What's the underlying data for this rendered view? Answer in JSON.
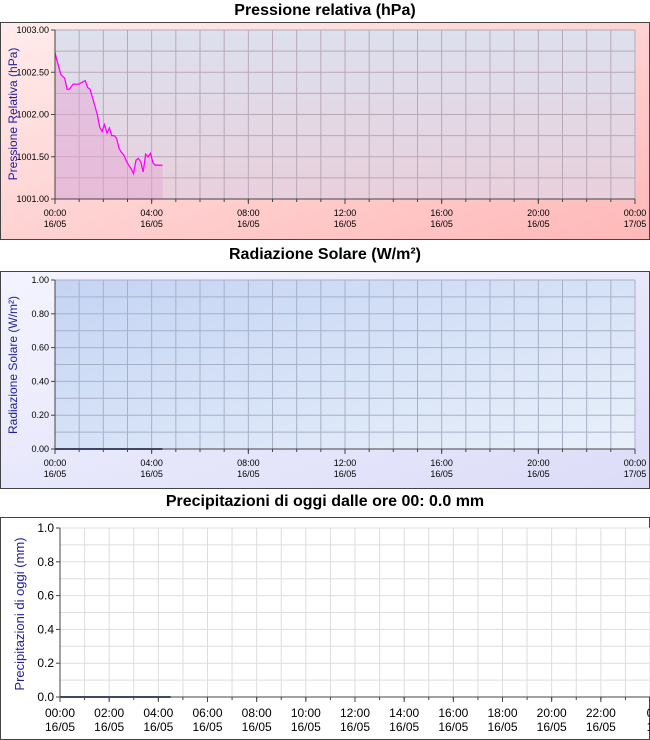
{
  "charts": [
    {
      "type": "area",
      "title": "Pressione relativa (hPa)",
      "ylabel": "Pressione Relativa (hPa)",
      "ylim": [
        1001.0,
        1003.0
      ],
      "yticks": [
        "1001.00",
        "1001.50",
        "1002.00",
        "1002.50",
        "1003.00"
      ],
      "xticks": [
        {
          "time": "00:00",
          "date": "16/05"
        },
        {
          "time": "04:00",
          "date": "16/05"
        },
        {
          "time": "08:00",
          "date": "16/05"
        },
        {
          "time": "12:00",
          "date": "16/05"
        },
        {
          "time": "16:00",
          "date": "16/05"
        },
        {
          "time": "20:00",
          "date": "16/05"
        },
        {
          "time": "00:00",
          "date": "17/05"
        }
      ],
      "xlim_hours": [
        0,
        24
      ],
      "line_color": "#ff00ff",
      "series": [
        {
          "x": [
            0.0,
            0.1,
            0.25,
            0.4,
            0.5,
            0.6,
            0.75,
            0.9,
            1.0,
            1.1,
            1.25,
            1.35,
            1.45,
            1.55,
            1.65,
            1.75,
            1.85,
            1.95,
            2.05,
            2.15,
            2.25,
            2.35,
            2.45,
            2.55,
            2.65,
            2.75,
            2.85,
            2.95,
            3.05,
            3.15,
            3.25,
            3.35,
            3.45,
            3.55,
            3.65,
            3.75,
            3.85,
            3.95,
            4.05,
            4.15,
            4.25,
            4.35,
            4.45
          ],
          "y": [
            1002.73,
            1002.62,
            1002.47,
            1002.43,
            1002.3,
            1002.3,
            1002.36,
            1002.36,
            1002.36,
            1002.38,
            1002.4,
            1002.32,
            1002.3,
            1002.2,
            1002.1,
            1002.0,
            1001.85,
            1001.8,
            1001.88,
            1001.78,
            1001.84,
            1001.75,
            1001.75,
            1001.72,
            1001.6,
            1001.55,
            1001.52,
            1001.45,
            1001.4,
            1001.36,
            1001.3,
            1001.46,
            1001.48,
            1001.44,
            1001.32,
            1001.53,
            1001.5,
            1001.54,
            1001.43,
            1001.4,
            1001.4,
            1001.4,
            1001.4
          ]
        }
      ]
    },
    {
      "type": "line",
      "title": "Radiazione Solare (W/m²)",
      "ylabel": "Radiazione Solare (W/m²)",
      "ylim": [
        0.0,
        1.0
      ],
      "yticks": [
        "0.00",
        "0.20",
        "0.40",
        "0.60",
        "0.80",
        "1.00"
      ],
      "xticks": [
        {
          "time": "00:00",
          "date": "16/05"
        },
        {
          "time": "04:00",
          "date": "16/05"
        },
        {
          "time": "08:00",
          "date": "16/05"
        },
        {
          "time": "12:00",
          "date": "16/05"
        },
        {
          "time": "16:00",
          "date": "16/05"
        },
        {
          "time": "20:00",
          "date": "16/05"
        },
        {
          "time": "00:00",
          "date": "17/05"
        }
      ],
      "xlim_hours": [
        0,
        24
      ],
      "line_color": "#3a4a80",
      "series": [
        {
          "x": [
            0.0,
            4.45
          ],
          "y": [
            0.0,
            0.0
          ]
        }
      ]
    },
    {
      "type": "line",
      "title": "Precipitazioni di oggi dalle ore 00:   0.0 mm",
      "ylabel": "Precipitazioni di oggi (mm)",
      "ylim": [
        0.0,
        1.0
      ],
      "yticks": [
        "0.0",
        "0.2",
        "0.4",
        "0.6",
        "0.8",
        "1.0"
      ],
      "xticks": [
        {
          "time": "00:00",
          "date": "16/05"
        },
        {
          "time": "02:00",
          "date": "16/05"
        },
        {
          "time": "04:00",
          "date": "16/05"
        },
        {
          "time": "06:00",
          "date": "16/05"
        },
        {
          "time": "08:00",
          "date": "16/05"
        },
        {
          "time": "10:00",
          "date": "16/05"
        },
        {
          "time": "12:00",
          "date": "16/05"
        },
        {
          "time": "14:00",
          "date": "16/05"
        },
        {
          "time": "16:00",
          "date": "16/05"
        },
        {
          "time": "18:00",
          "date": "16/05"
        },
        {
          "time": "20:00",
          "date": "16/05"
        },
        {
          "time": "22:00",
          "date": "16/05"
        },
        {
          "time": "0",
          "date": "1"
        }
      ],
      "xlim_hours": [
        0,
        24
      ],
      "line_color": "#3a4a80",
      "series": [
        {
          "x": [
            0.0,
            4.5
          ],
          "y": [
            0.0,
            0.0
          ]
        }
      ]
    }
  ]
}
